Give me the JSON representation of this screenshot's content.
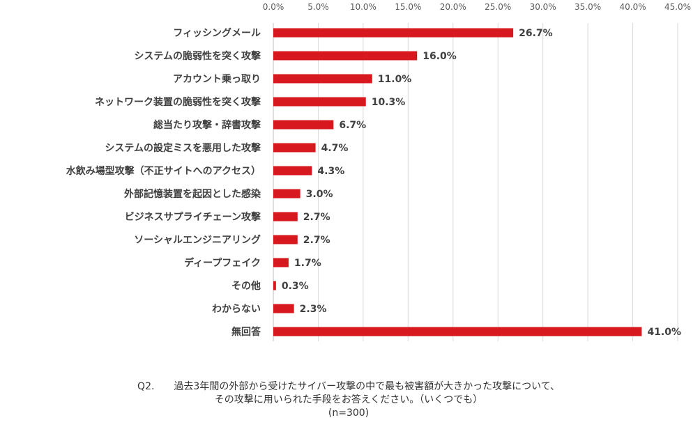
{
  "chart_data": {
    "type": "bar",
    "orientation": "horizontal",
    "categories": [
      "フィッシングメール",
      "システムの脆弱性を突く攻撃",
      "アカウント乗っ取り",
      "ネットワーク装置の脆弱性を突く攻撃",
      "総当たり攻撃・辞書攻撃",
      "システムの設定ミスを悪用した攻撃",
      "水飲み場型攻撃（不正サイトへのアクセス）",
      "外部記憶装置を起因とした感染",
      "ビジネスサプライチェーン攻撃",
      "ソーシャルエンジニアリング",
      "ディープフェイク",
      "その他",
      "わからない",
      "無回答"
    ],
    "values": [
      26.7,
      16.0,
      11.0,
      10.3,
      6.7,
      4.7,
      4.3,
      3.0,
      2.7,
      2.7,
      1.7,
      0.3,
      2.3,
      41.0
    ],
    "value_labels": [
      "26.7%",
      "16.0%",
      "11.0%",
      "10.3%",
      "6.7%",
      "4.7%",
      "4.3%",
      "3.0%",
      "2.7%",
      "2.7%",
      "1.7%",
      "0.3%",
      "2.3%",
      "41.0%"
    ],
    "xlim": [
      0,
      45
    ],
    "xticks": [
      0,
      5,
      10,
      15,
      20,
      25,
      30,
      35,
      40,
      45
    ],
    "xtick_labels": [
      "0.0%",
      "5.0%",
      "10.0%",
      "15.0%",
      "20.0%",
      "25.0%",
      "30.0%",
      "35.0%",
      "40.0%",
      "45.0%"
    ],
    "axis_position": "top",
    "grid": true,
    "bar_color": "#d7191f"
  },
  "caption": {
    "question_id": "Q2.",
    "line1": "過去3年間の外部から受けたサイバー攻撃の中で最も被害額が大きかった攻撃について、",
    "line2": "その攻撃に用いられた手段をお答えください。（いくつでも）",
    "sample": "(n=300)"
  }
}
